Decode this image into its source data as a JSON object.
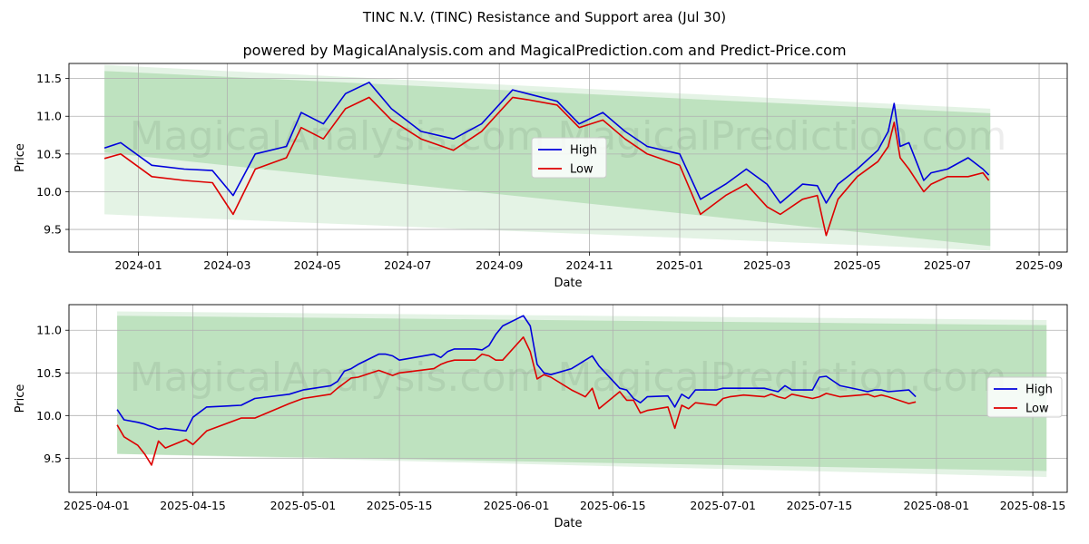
{
  "title": "TINC N.V. (TINC) Resistance and Support area (Jul 30)",
  "subtitle": "powered by MagicalAnalysis.com and MagicalPrediction.com and Predict-Price.com",
  "watermark": "MagicalAnalysis.com    MagicalPrediction.com",
  "colors": {
    "high": "#0000dd",
    "low": "#dd0000",
    "band": "#4caf50"
  },
  "chart_data": [
    {
      "type": "line",
      "xlabel": "Date",
      "ylabel": "Price",
      "x_ticks": [
        "2024-01",
        "2024-03",
        "2024-05",
        "2024-07",
        "2024-09",
        "2024-11",
        "2025-01",
        "2025-03",
        "2025-05",
        "2025-07",
        "2025-09"
      ],
      "y_ticks": [
        "9.5",
        "10.0",
        "10.5",
        "11.0",
        "11.5"
      ],
      "ylim": [
        9.2,
        11.7
      ],
      "xlim": [
        "2023-11-15",
        "2025-09-20"
      ],
      "grid": true,
      "legend": "center",
      "bands": [
        {
          "x": [
            "2023-12-09",
            "2025-07-30"
          ],
          "upper": [
            11.68,
            11.1
          ],
          "lower": [
            9.7,
            9.22
          ]
        },
        {
          "x": [
            "2023-12-09",
            "2025-07-30"
          ],
          "upper": [
            11.6,
            11.04
          ],
          "lower": [
            10.52,
            9.28
          ]
        }
      ],
      "series": [
        {
          "name": "High",
          "x": [
            "2023-12-09",
            "2023-12-20",
            "2024-01-10",
            "2024-02-01",
            "2024-02-20",
            "2024-03-05",
            "2024-03-20",
            "2024-04-10",
            "2024-04-20",
            "2024-05-05",
            "2024-05-20",
            "2024-06-05",
            "2024-06-20",
            "2024-07-10",
            "2024-08-01",
            "2024-08-20",
            "2024-09-10",
            "2024-09-20",
            "2024-10-10",
            "2024-10-25",
            "2024-11-10",
            "2024-11-25",
            "2024-12-10",
            "2025-01-01",
            "2025-01-15",
            "2025-02-01",
            "2025-02-15",
            "2025-03-01",
            "2025-03-10",
            "2025-03-25",
            "2025-04-04",
            "2025-04-10",
            "2025-04-18",
            "2025-05-01",
            "2025-05-15",
            "2025-05-22",
            "2025-05-26",
            "2025-05-30",
            "2025-06-05",
            "2025-06-15",
            "2025-06-20",
            "2025-07-01",
            "2025-07-15",
            "2025-07-25",
            "2025-07-29"
          ],
          "values": [
            10.58,
            10.65,
            10.35,
            10.3,
            10.28,
            9.95,
            10.5,
            10.6,
            11.05,
            10.9,
            11.3,
            11.45,
            11.1,
            10.8,
            10.7,
            10.9,
            11.35,
            11.3,
            11.2,
            10.9,
            11.05,
            10.8,
            10.6,
            10.5,
            9.9,
            10.1,
            10.3,
            10.1,
            9.85,
            10.1,
            10.08,
            9.85,
            10.1,
            10.3,
            10.55,
            10.8,
            11.17,
            10.6,
            10.65,
            10.15,
            10.25,
            10.3,
            10.45,
            10.3,
            10.22
          ]
        },
        {
          "name": "Low",
          "x": [
            "2023-12-09",
            "2023-12-20",
            "2024-01-10",
            "2024-02-01",
            "2024-02-20",
            "2024-03-05",
            "2024-03-20",
            "2024-04-10",
            "2024-04-20",
            "2024-05-05",
            "2024-05-20",
            "2024-06-05",
            "2024-06-20",
            "2024-07-10",
            "2024-08-01",
            "2024-08-20",
            "2024-09-10",
            "2024-09-20",
            "2024-10-10",
            "2024-10-25",
            "2024-11-10",
            "2024-11-25",
            "2024-12-10",
            "2025-01-01",
            "2025-01-15",
            "2025-02-01",
            "2025-02-15",
            "2025-03-01",
            "2025-03-10",
            "2025-03-25",
            "2025-04-04",
            "2025-04-10",
            "2025-04-18",
            "2025-05-01",
            "2025-05-15",
            "2025-05-22",
            "2025-05-26",
            "2025-05-30",
            "2025-06-05",
            "2025-06-15",
            "2025-06-20",
            "2025-07-01",
            "2025-07-15",
            "2025-07-25",
            "2025-07-29"
          ],
          "values": [
            10.44,
            10.5,
            10.2,
            10.15,
            10.12,
            9.7,
            10.3,
            10.45,
            10.85,
            10.7,
            11.1,
            11.25,
            10.95,
            10.7,
            10.55,
            10.8,
            11.25,
            11.22,
            11.15,
            10.85,
            10.95,
            10.7,
            10.5,
            10.35,
            9.7,
            9.95,
            10.1,
            9.8,
            9.7,
            9.9,
            9.95,
            9.42,
            9.9,
            10.2,
            10.4,
            10.6,
            10.92,
            10.45,
            10.3,
            10.0,
            10.1,
            10.2,
            10.2,
            10.25,
            10.15
          ]
        }
      ]
    },
    {
      "type": "line",
      "xlabel": "Date",
      "ylabel": "Price",
      "x_ticks": [
        "2025-04-01",
        "2025-04-15",
        "2025-05-01",
        "2025-05-15",
        "2025-06-01",
        "2025-06-15",
        "2025-07-01",
        "2025-07-15",
        "2025-08-01",
        "2025-08-15"
      ],
      "y_ticks": [
        "9.5",
        "10.0",
        "10.5",
        "11.0"
      ],
      "ylim": [
        9.1,
        11.3
      ],
      "xlim": [
        "2025-03-28",
        "2025-08-20"
      ],
      "grid": true,
      "legend": "right",
      "bands": [
        {
          "x": [
            "2025-04-04",
            "2025-08-17"
          ],
          "upper": [
            11.22,
            11.12
          ],
          "lower": [
            9.55,
            9.28
          ]
        },
        {
          "x": [
            "2025-04-04",
            "2025-08-17"
          ],
          "upper": [
            11.17,
            11.06
          ],
          "lower": [
            9.55,
            9.35
          ]
        }
      ],
      "series": [
        {
          "name": "High",
          "x": [
            "2025-04-04",
            "2025-04-05",
            "2025-04-07",
            "2025-04-08",
            "2025-04-09",
            "2025-04-10",
            "2025-04-11",
            "2025-04-14",
            "2025-04-15",
            "2025-04-17",
            "2025-04-22",
            "2025-04-24",
            "2025-04-29",
            "2025-05-01",
            "2025-05-05",
            "2025-05-06",
            "2025-05-07",
            "2025-05-08",
            "2025-05-09",
            "2025-05-12",
            "2025-05-13",
            "2025-05-14",
            "2025-05-15",
            "2025-05-20",
            "2025-05-21",
            "2025-05-22",
            "2025-05-23",
            "2025-05-26",
            "2025-05-27",
            "2025-05-28",
            "2025-05-29",
            "2025-05-30",
            "2025-06-02",
            "2025-06-03",
            "2025-06-04",
            "2025-06-05",
            "2025-06-06",
            "2025-06-09",
            "2025-06-11",
            "2025-06-12",
            "2025-06-13",
            "2025-06-16",
            "2025-06-17",
            "2025-06-18",
            "2025-06-19",
            "2025-06-20",
            "2025-06-23",
            "2025-06-24",
            "2025-06-25",
            "2025-06-26",
            "2025-06-27",
            "2025-06-30",
            "2025-07-01",
            "2025-07-02",
            "2025-07-03",
            "2025-07-04",
            "2025-07-07",
            "2025-07-08",
            "2025-07-09",
            "2025-07-10",
            "2025-07-11",
            "2025-07-14",
            "2025-07-15",
            "2025-07-16",
            "2025-07-18",
            "2025-07-21",
            "2025-07-22",
            "2025-07-23",
            "2025-07-24",
            "2025-07-25",
            "2025-07-28",
            "2025-07-29"
          ],
          "values": [
            10.07,
            9.95,
            9.92,
            9.9,
            9.87,
            9.84,
            9.85,
            9.82,
            9.98,
            10.1,
            10.12,
            10.2,
            10.25,
            10.3,
            10.35,
            10.4,
            10.52,
            10.55,
            10.6,
            10.72,
            10.72,
            10.7,
            10.65,
            10.72,
            10.68,
            10.75,
            10.78,
            10.78,
            10.77,
            10.82,
            10.95,
            11.05,
            11.17,
            11.05,
            10.6,
            10.5,
            10.48,
            10.55,
            10.65,
            10.7,
            10.58,
            10.32,
            10.3,
            10.2,
            10.15,
            10.22,
            10.23,
            10.1,
            10.25,
            10.2,
            10.3,
            10.3,
            10.32,
            10.32,
            10.32,
            10.32,
            10.32,
            10.3,
            10.28,
            10.35,
            10.3,
            10.3,
            10.45,
            10.46,
            10.35,
            10.3,
            10.28,
            10.3,
            10.3,
            10.28,
            10.3,
            10.22
          ]
        },
        {
          "name": "Low",
          "x": [
            "2025-04-04",
            "2025-04-05",
            "2025-04-07",
            "2025-04-08",
            "2025-04-09",
            "2025-04-10",
            "2025-04-11",
            "2025-04-14",
            "2025-04-15",
            "2025-04-17",
            "2025-04-22",
            "2025-04-24",
            "2025-04-29",
            "2025-05-01",
            "2025-05-05",
            "2025-05-06",
            "2025-05-07",
            "2025-05-08",
            "2025-05-09",
            "2025-05-12",
            "2025-05-13",
            "2025-05-14",
            "2025-05-15",
            "2025-05-20",
            "2025-05-21",
            "2025-05-22",
            "2025-05-23",
            "2025-05-26",
            "2025-05-27",
            "2025-05-28",
            "2025-05-29",
            "2025-05-30",
            "2025-06-02",
            "2025-06-03",
            "2025-06-04",
            "2025-06-05",
            "2025-06-06",
            "2025-06-09",
            "2025-06-11",
            "2025-06-12",
            "2025-06-13",
            "2025-06-16",
            "2025-06-17",
            "2025-06-18",
            "2025-06-19",
            "2025-06-20",
            "2025-06-23",
            "2025-06-24",
            "2025-06-25",
            "2025-06-26",
            "2025-06-27",
            "2025-06-30",
            "2025-07-01",
            "2025-07-02",
            "2025-07-03",
            "2025-07-04",
            "2025-07-07",
            "2025-07-08",
            "2025-07-09",
            "2025-07-10",
            "2025-07-11",
            "2025-07-14",
            "2025-07-15",
            "2025-07-16",
            "2025-07-18",
            "2025-07-21",
            "2025-07-22",
            "2025-07-23",
            "2025-07-24",
            "2025-07-25",
            "2025-07-28",
            "2025-07-29"
          ],
          "values": [
            9.89,
            9.75,
            9.65,
            9.55,
            9.42,
            9.7,
            9.62,
            9.72,
            9.66,
            9.82,
            9.97,
            9.97,
            10.14,
            10.2,
            10.25,
            10.32,
            10.38,
            10.44,
            10.45,
            10.53,
            10.5,
            10.47,
            10.5,
            10.55,
            10.6,
            10.63,
            10.65,
            10.65,
            10.72,
            10.7,
            10.65,
            10.65,
            10.92,
            10.75,
            10.43,
            10.48,
            10.45,
            10.3,
            10.22,
            10.32,
            10.08,
            10.28,
            10.18,
            10.18,
            10.03,
            10.06,
            10.1,
            9.85,
            10.12,
            10.08,
            10.15,
            10.12,
            10.2,
            10.22,
            10.23,
            10.24,
            10.22,
            10.25,
            10.22,
            10.2,
            10.25,
            10.2,
            10.22,
            10.26,
            10.22,
            10.24,
            10.25,
            10.22,
            10.24,
            10.22,
            10.14,
            10.16
          ]
        }
      ]
    }
  ]
}
